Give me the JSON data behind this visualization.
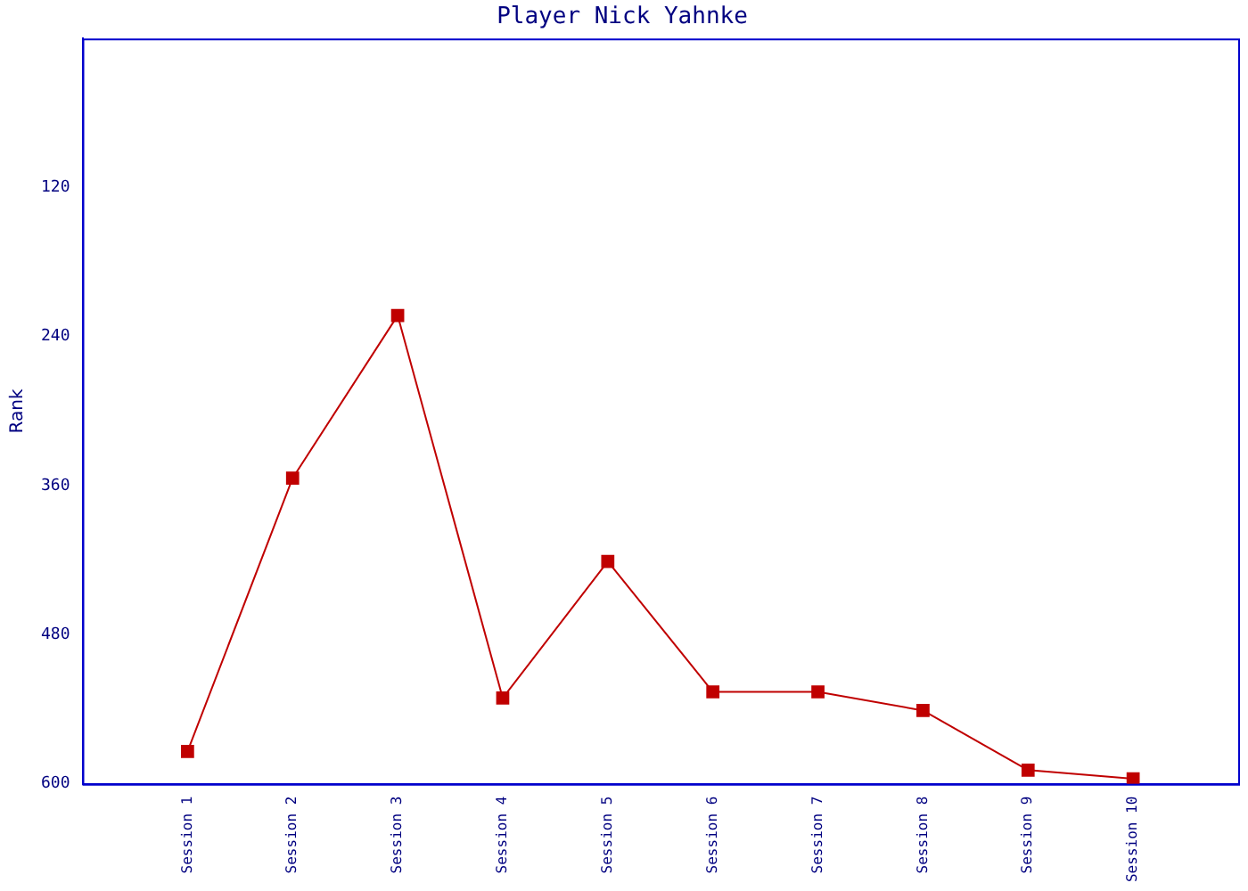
{
  "chart_data": {
    "type": "line",
    "title": "Player Nick Yahnke",
    "ylabel": "Rank",
    "categories": [
      "Session 1",
      "Session 2",
      "Session 3",
      "Session 4",
      "Session 5",
      "Session 6",
      "Session 7",
      "Session 8",
      "Session 9",
      "Session 10"
    ],
    "series": [
      {
        "color": "#c00000",
        "values": [
          574,
          354,
          223,
          531,
          421,
          526,
          526,
          541,
          589,
          596
        ]
      }
    ],
    "ylim": [
      600,
      0
    ],
    "yticks": [
      120,
      240,
      360,
      480,
      600
    ],
    "grid": false,
    "legend": false,
    "marker": "square",
    "line_style": "solid"
  }
}
